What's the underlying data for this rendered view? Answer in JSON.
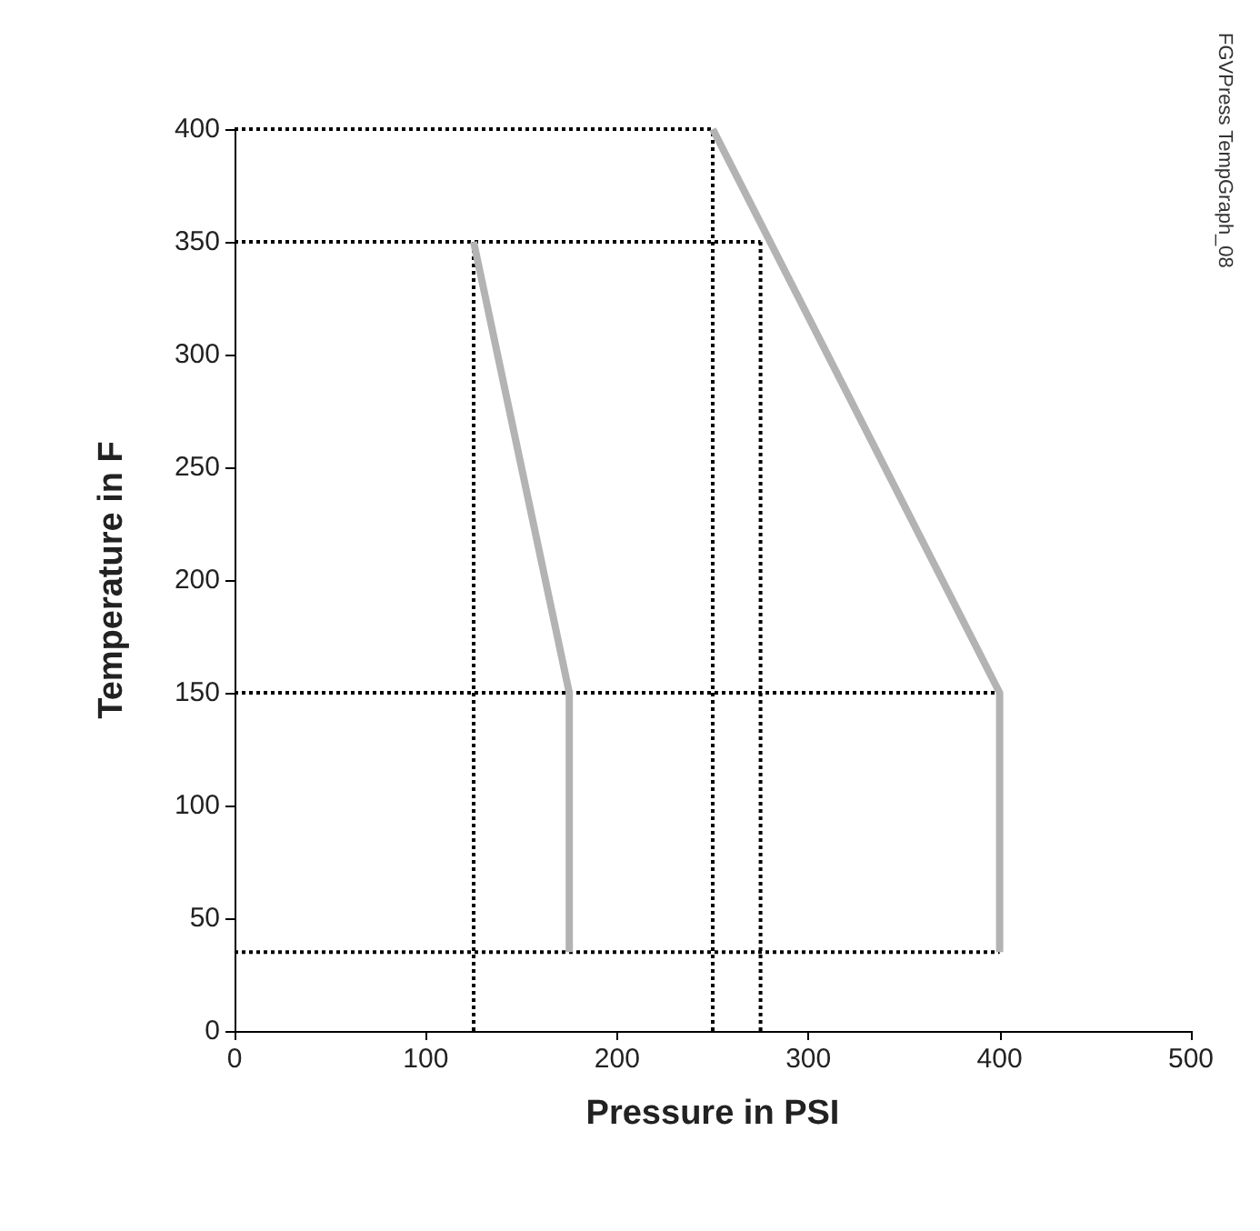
{
  "chart_data": {
    "type": "line",
    "xlabel": "Pressure in PSI",
    "ylabel": "Temperature in F",
    "annotations": [
      "FGVPress TempGraph_08"
    ],
    "xlim": [
      0,
      500
    ],
    "xticks": [
      0,
      100,
      200,
      300,
      400,
      500
    ],
    "ylim": [
      0,
      400
    ],
    "yticks": [
      0,
      50,
      100,
      150,
      200,
      250,
      300,
      350,
      400
    ],
    "grid": false,
    "marker": "none",
    "series": [
      {
        "color": "#b3b3b3",
        "x": [
          125,
          175,
          175
        ],
        "values": [
          350,
          150,
          35
        ]
      },
      {
        "color": "#b3b3b3",
        "x": [
          250,
          400,
          400
        ],
        "values": [
          400,
          150,
          35
        ]
      },
      {
        "color": "#000000",
        "line_style": "dotted",
        "x": [
          0,
          250
        ],
        "values": [
          400,
          400
        ]
      },
      {
        "color": "#000000",
        "line_style": "dotted",
        "x": [
          0,
          275
        ],
        "values": [
          350,
          350
        ]
      },
      {
        "color": "#000000",
        "line_style": "dotted",
        "x": [
          0,
          400
        ],
        "values": [
          150,
          150
        ]
      },
      {
        "color": "#000000",
        "line_style": "dotted",
        "x": [
          0,
          400
        ],
        "values": [
          35,
          35
        ]
      },
      {
        "color": "#000000",
        "line_style": "dotted",
        "x": [
          125,
          125
        ],
        "values": [
          0,
          350
        ]
      },
      {
        "color": "#000000",
        "line_style": "dotted",
        "x": [
          250,
          250
        ],
        "values": [
          0,
          400
        ]
      },
      {
        "color": "#000000",
        "line_style": "dotted",
        "x": [
          275,
          275
        ],
        "values": [
          0,
          350
        ]
      }
    ]
  }
}
